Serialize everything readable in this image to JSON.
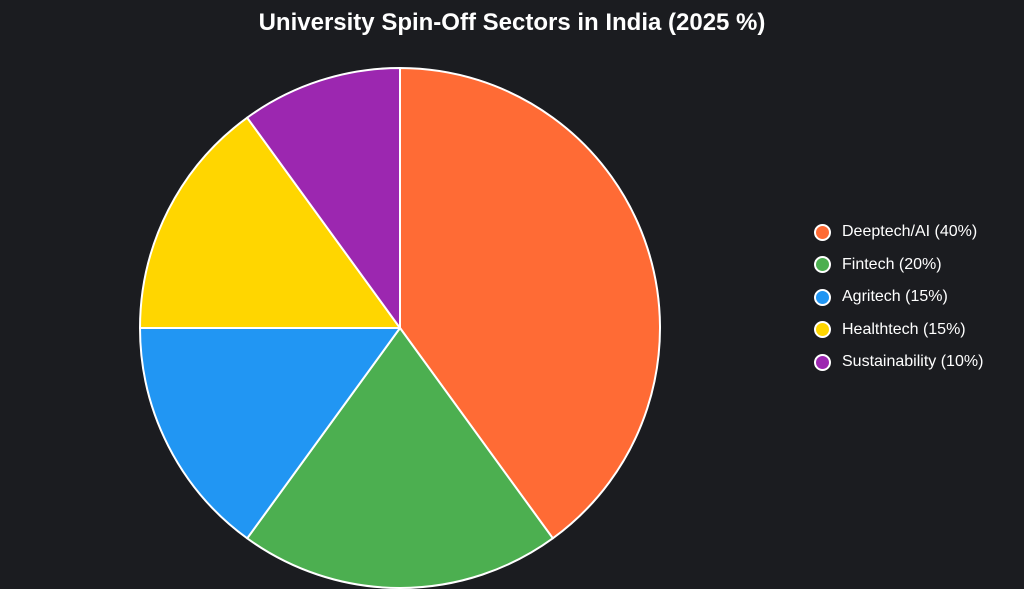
{
  "chart_data": {
    "type": "pie",
    "title": "University Spin-Off Sectors in India (2025 %)",
    "categories": [
      "Deeptech/AI",
      "Fintech",
      "Agritech",
      "Healthtech",
      "Sustainability"
    ],
    "values": [
      40,
      20,
      15,
      15,
      10
    ],
    "colors": [
      "#ff6b35",
      "#4caf50",
      "#2196f3",
      "#ffd600",
      "#9c27b0"
    ],
    "legend": {
      "position": "right",
      "labels": [
        "Deeptech/AI (40%)",
        "Fintech (20%)",
        "Agritech (15%)",
        "Healthtech (15%)",
        "Sustainability (10%)"
      ]
    },
    "slice_border_color": "#ffffff",
    "start": "top, clockwise"
  },
  "background_color": "#1b1c20"
}
